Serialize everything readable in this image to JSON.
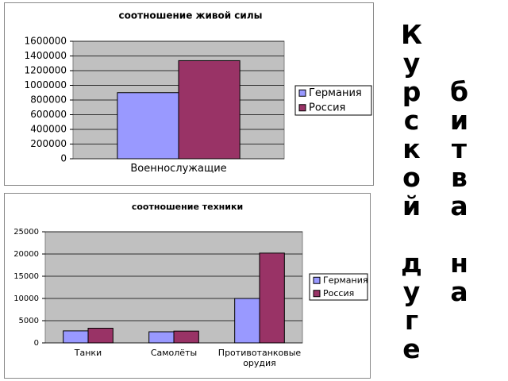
{
  "side_title": "битва на Курской дуге",
  "chart_data": [
    {
      "type": "bar",
      "title": "соотношение живой силы",
      "categories": [
        "Военнослужащие"
      ],
      "series": [
        {
          "name": "Германия",
          "color": "#9999ff",
          "values": [
            900000
          ]
        },
        {
          "name": "Россия",
          "color": "#993366",
          "values": [
            1336000
          ]
        }
      ],
      "ylim": [
        0,
        1600000
      ],
      "yticks": [
        0,
        200000,
        400000,
        600000,
        800000,
        1000000,
        1200000,
        1400000,
        1600000
      ],
      "grid": true,
      "legend": "right"
    },
    {
      "type": "bar",
      "title": "соотношение техники",
      "categories": [
        "Танки",
        "Самолёты",
        "Противотанковые орудия"
      ],
      "series": [
        {
          "name": "Германия",
          "color": "#9999ff",
          "values": [
            2700,
            2500,
            10000
          ]
        },
        {
          "name": "Россия",
          "color": "#993366",
          "values": [
            3300,
            2650,
            20200
          ]
        }
      ],
      "ylim": [
        0,
        25000
      ],
      "yticks": [
        0,
        5000,
        10000,
        15000,
        20000,
        25000
      ],
      "grid": true,
      "legend": "right"
    }
  ]
}
